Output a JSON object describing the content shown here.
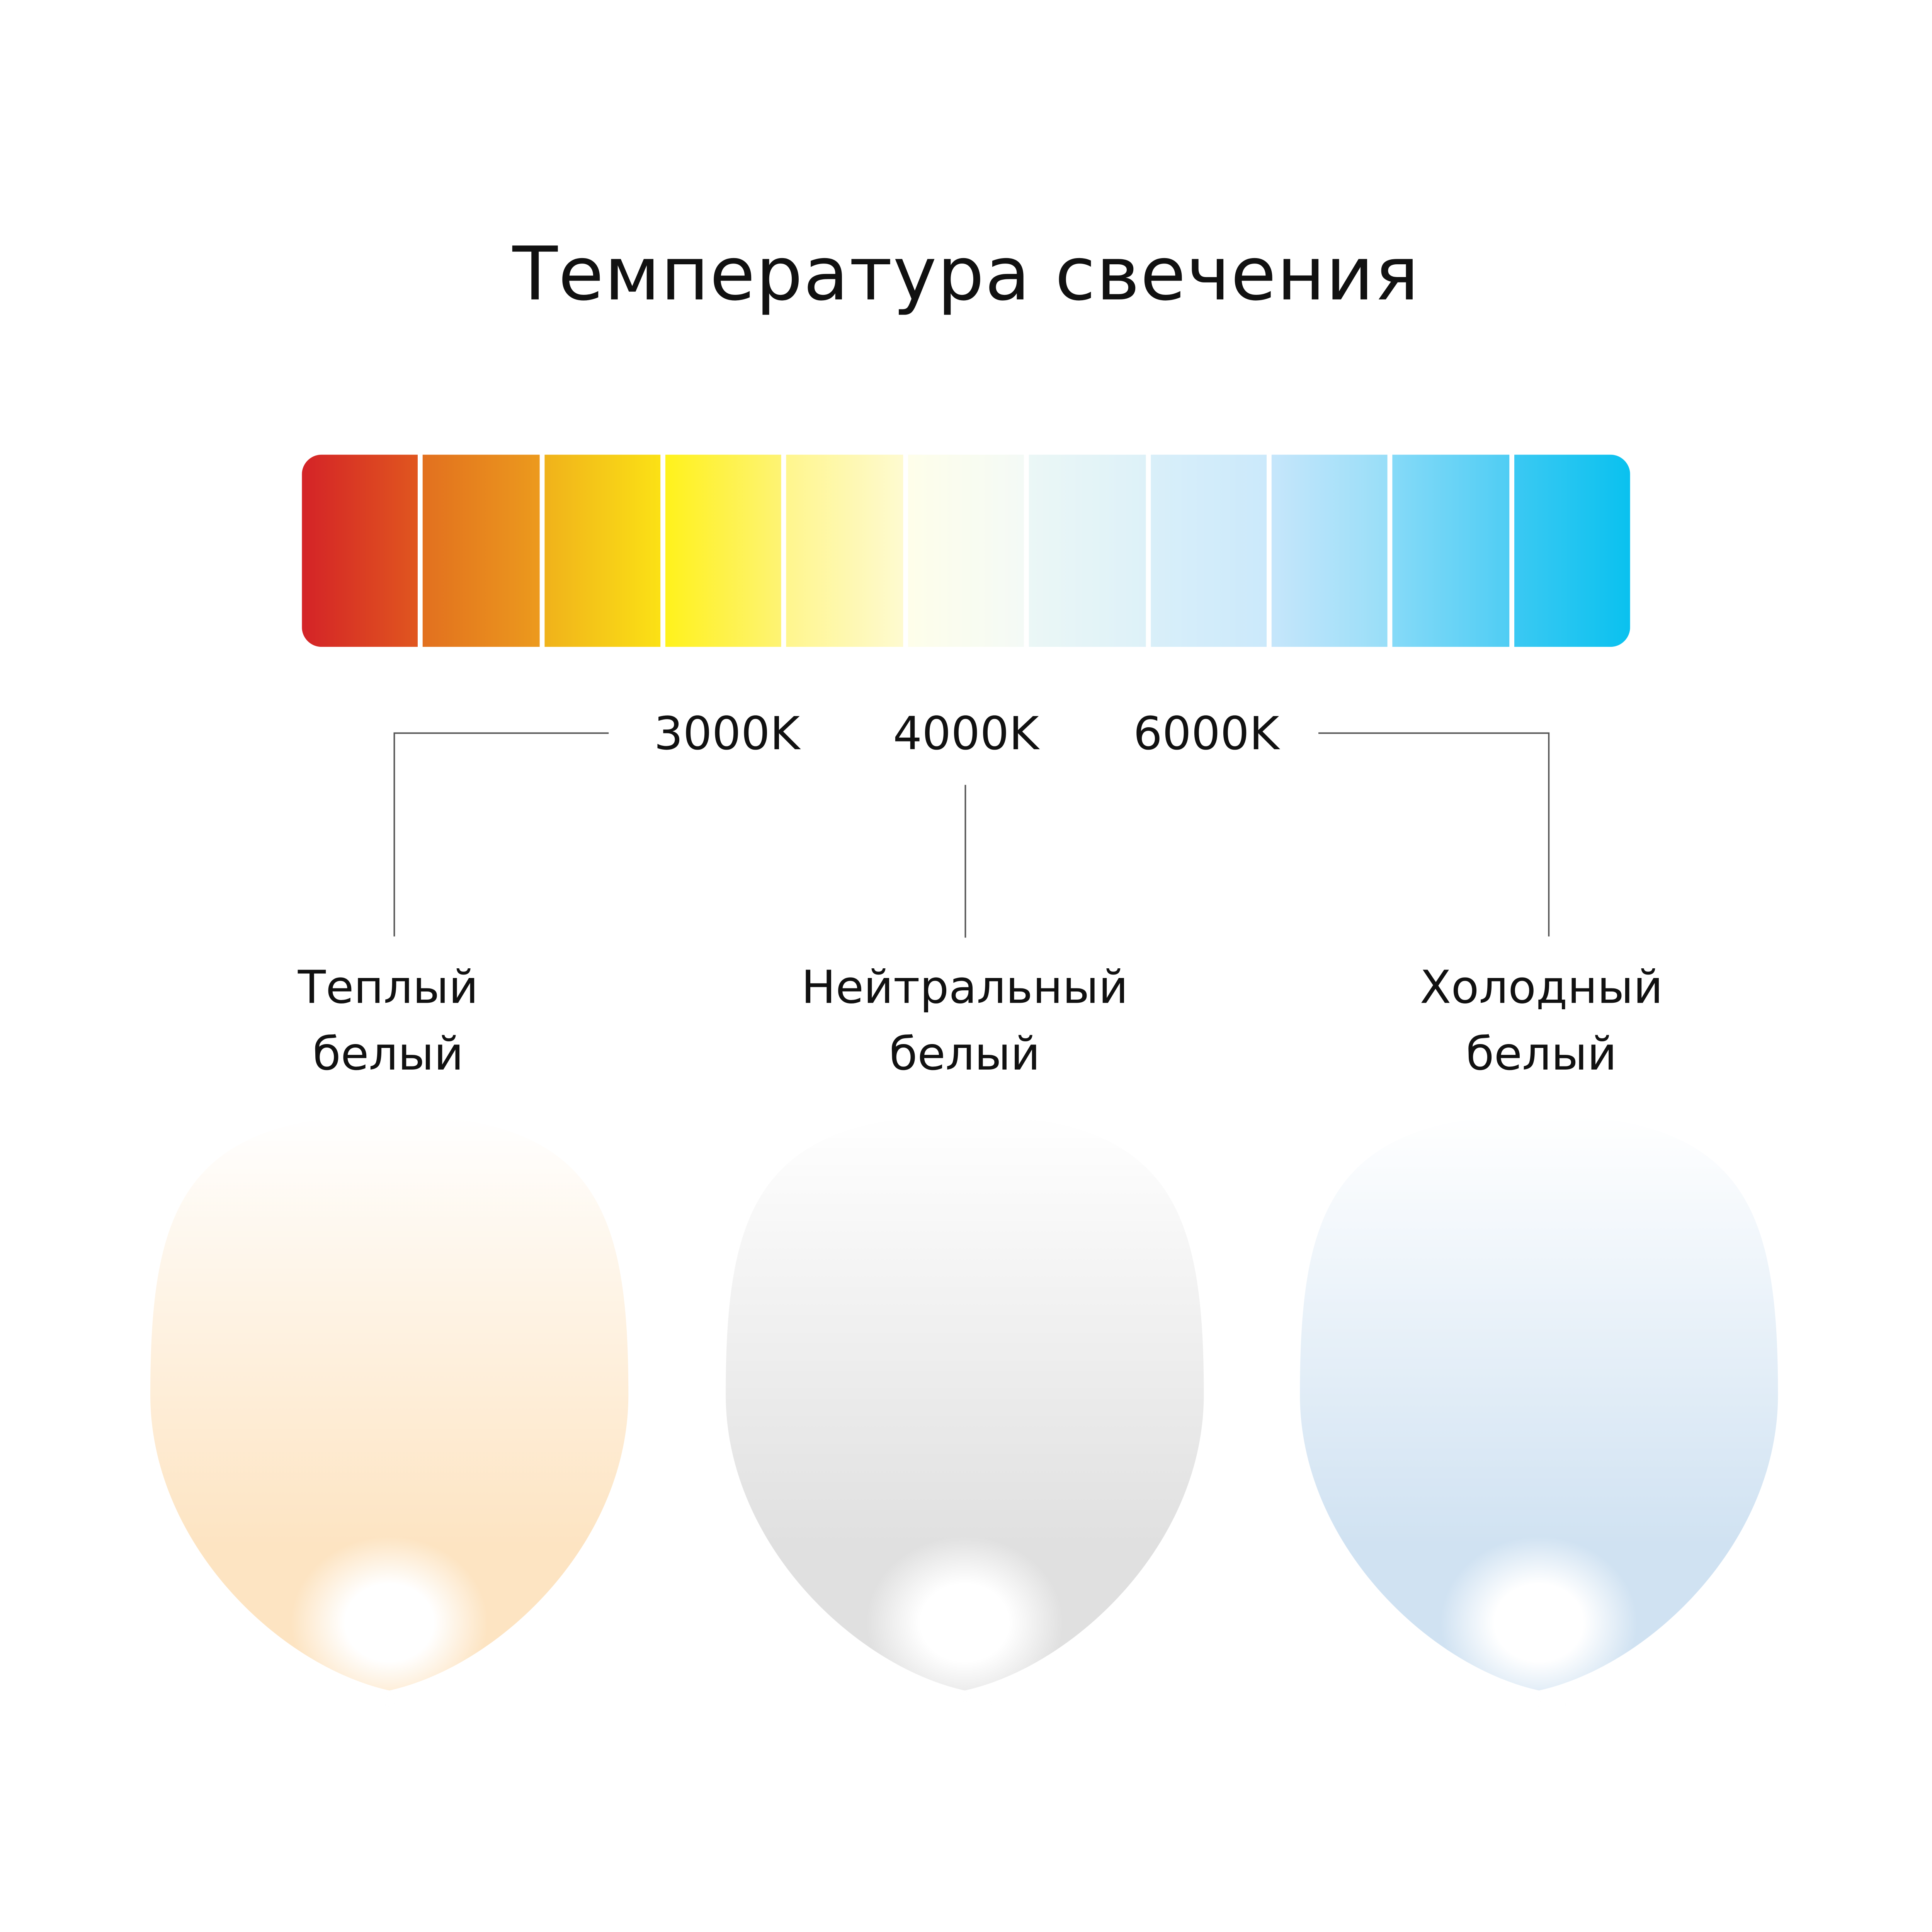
{
  "title": "Температура свечения",
  "colors": {
    "segments": [
      [
        "#d42327",
        "#e0561f"
      ],
      [
        "#e2701f",
        "#ec9a1d"
      ],
      [
        "#f0b21b",
        "#fbe115"
      ],
      [
        "#fff21c",
        "#fef374"
      ],
      [
        "#fff68d",
        "#fefad0"
      ],
      [
        "#fefeea",
        "#f4faf6"
      ],
      [
        "#ebf7f6",
        "#ddf1f8"
      ],
      [
        "#d9eff9",
        "#cbe9fb"
      ],
      [
        "#c6e6fb",
        "#98def8"
      ],
      [
        "#86daf8",
        "#4fcdf4"
      ],
      [
        "#3bc9f3",
        "#0ac1ef"
      ]
    ],
    "warm": "#fde4c2",
    "neutral": "#e0e0e0",
    "cool": "#d0e2f2",
    "connector": "#555555"
  },
  "kelvin_labels": [
    "3000K",
    "4000K",
    "6000K"
  ],
  "categories": [
    {
      "line1": "Теплый",
      "line2": "белый"
    },
    {
      "line1": "Нейтральный",
      "line2": "белый"
    },
    {
      "line1": "Холодный",
      "line2": "белый"
    }
  ]
}
